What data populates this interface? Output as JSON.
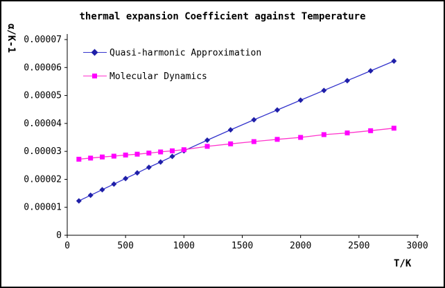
{
  "chart_data": {
    "type": "line",
    "title": "thermal expansion Coefficient against Temperature",
    "xlabel": "T/K",
    "ylabel": "α/K-1",
    "xlim": [
      0,
      3000
    ],
    "ylim": [
      0,
      7e-05
    ],
    "grid": false,
    "legend_position": "top-left-inside",
    "x_ticks": [
      0,
      500,
      1000,
      1500,
      2000,
      2500,
      3000
    ],
    "x_tick_labels": [
      "0",
      "500",
      "1000",
      "1500",
      "2000",
      "2500",
      "3000"
    ],
    "y_ticks": [
      0,
      1e-05,
      2e-05,
      3e-05,
      4e-05,
      5e-05,
      6e-05,
      7e-05
    ],
    "y_tick_labels": [
      "0",
      "0.00001",
      "0.00002",
      "0.00003",
      "0.00004",
      "0.00005",
      "0.00006",
      "0.00007"
    ],
    "series": [
      {
        "name": "Quasi-harmonic Approximation",
        "marker": "diamond",
        "line_color": "#3333CC",
        "marker_color": "#1F1FA8",
        "x": [
          100,
          200,
          300,
          400,
          500,
          600,
          700,
          800,
          900,
          1000,
          1200,
          1400,
          1600,
          1800,
          2000,
          2200,
          2400,
          2600,
          2800
        ],
        "y": [
          1.23e-05,
          1.43e-05,
          1.63e-05,
          1.83e-05,
          2.03e-05,
          2.23e-05,
          2.43e-05,
          2.62e-05,
          2.82e-05,
          3.02e-05,
          3.4e-05,
          3.77e-05,
          4.13e-05,
          4.48e-05,
          4.83e-05,
          5.18e-05,
          5.53e-05,
          5.88e-05,
          6.23e-05
        ]
      },
      {
        "name": "Molecular Dynamics",
        "marker": "square",
        "line_color": "#FF33CC",
        "marker_color": "#FF00FF",
        "x": [
          100,
          200,
          300,
          400,
          500,
          600,
          700,
          800,
          900,
          1000,
          1200,
          1400,
          1600,
          1800,
          2000,
          2200,
          2400,
          2600,
          2800
        ],
        "y": [
          2.72e-05,
          2.76e-05,
          2.8e-05,
          2.83e-05,
          2.87e-05,
          2.9e-05,
          2.94e-05,
          2.98e-05,
          3.02e-05,
          3.06e-05,
          3.18e-05,
          3.27e-05,
          3.35e-05,
          3.43e-05,
          3.5e-05,
          3.6e-05,
          3.66e-05,
          3.74e-05,
          3.83e-05
        ]
      }
    ]
  }
}
